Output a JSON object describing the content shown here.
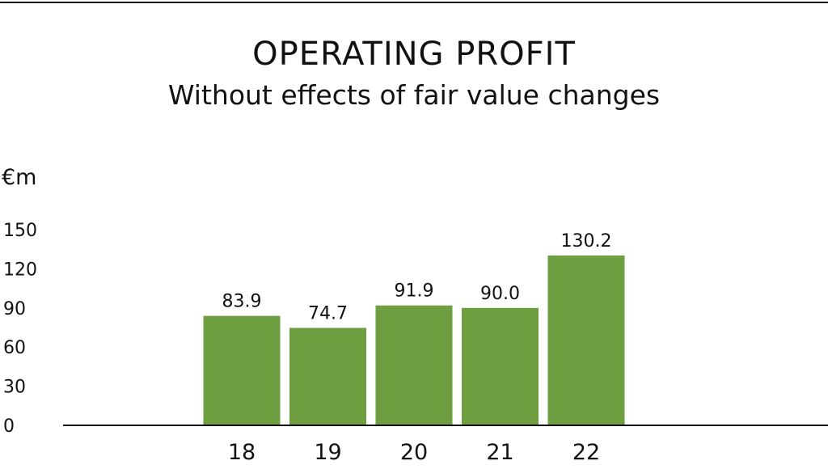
{
  "chart_data": {
    "type": "bar",
    "title": "OPERATING PROFIT",
    "subtitle": "Without effects of fair value changes",
    "ylabel": "€m",
    "xlabel": "",
    "categories": [
      "18",
      "19",
      "20",
      "21",
      "22"
    ],
    "values": [
      83.9,
      74.7,
      91.9,
      90.0,
      130.2
    ],
    "value_labels": [
      "83.9",
      "74.7",
      "91.9",
      "90.0",
      "130.2"
    ],
    "yticks": [
      "0",
      "30",
      "60",
      "90",
      "120",
      "150"
    ],
    "ylim": [
      0,
      150
    ],
    "grid": false,
    "legend": "none",
    "bar_color": "#6e9e3f"
  }
}
